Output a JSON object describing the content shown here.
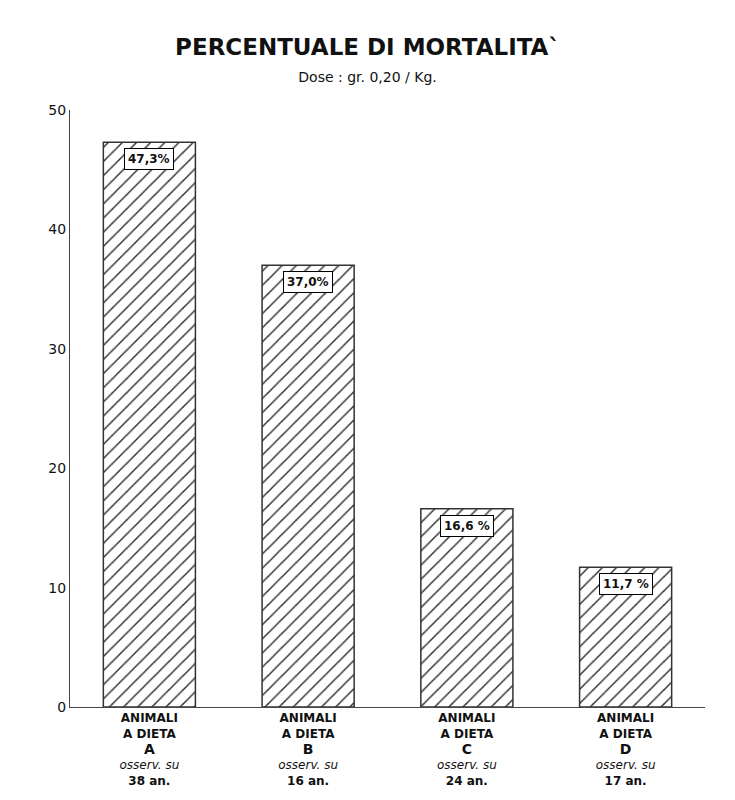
{
  "chart_data": {
    "type": "bar",
    "title": "PERCENTUALE DI MORTALITA`",
    "subtitle": "Dose : gr. 0,20 / Kg.",
    "categories": [
      "ANIMALI\nA DIETA\nA\nosserv. su\n38 an.",
      "ANIMALI\nA DIETA\nB\nosserv. su\n16 an.",
      "ANIMALI\nA DIETA\nC\nosserv. su\n24 an.",
      "ANIMALI\nA DIETA\nD\nosserv. su\n17 an."
    ],
    "values": [
      47.3,
      37.0,
      16.6,
      11.7
    ],
    "value_labels": [
      "47,3%",
      "37,0%",
      "16,6 %",
      "11,7 %"
    ],
    "data_labels": true,
    "color": "#e8e4dc",
    "ylim": [
      0,
      50
    ],
    "yticks": [
      0,
      10,
      20,
      30,
      40,
      50
    ],
    "grid": false
  }
}
